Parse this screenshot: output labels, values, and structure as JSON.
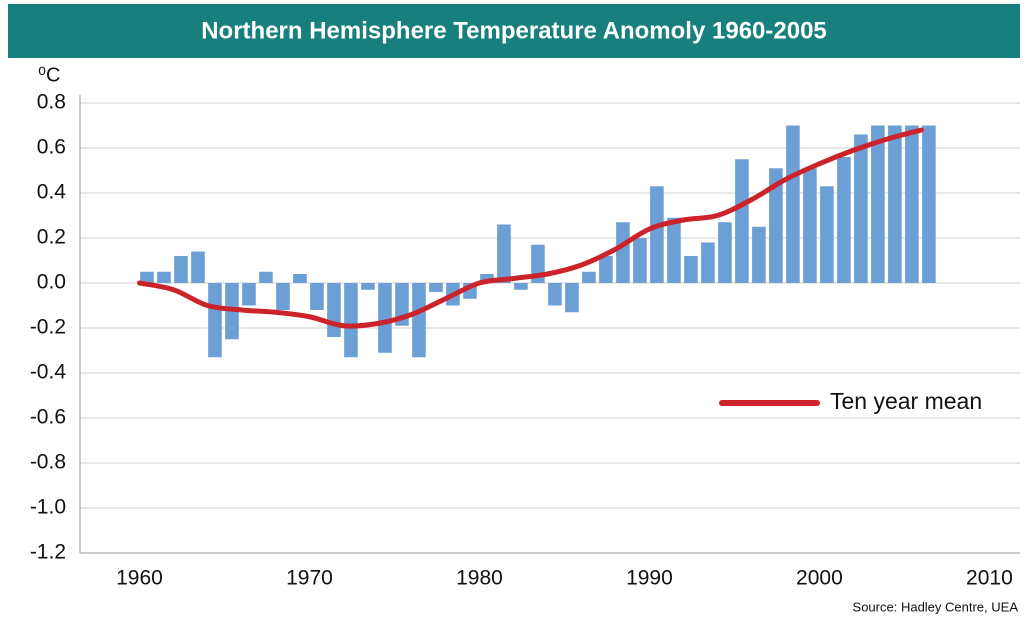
{
  "chart_data": {
    "type": "bar",
    "title": "Northern Hemisphere Temperature Anomoly 1960-2005",
    "y_label": "⁰C",
    "source": "Source: Hadley Centre, UEA",
    "xlim": [
      1956.5,
      2011.8
    ],
    "xticks": [
      1960,
      1970,
      1980,
      1990,
      2000,
      2010
    ],
    "ylim": [
      -1.2,
      0.8
    ],
    "yticks": [
      0.8,
      0.6,
      0.4,
      0.2,
      {
        "value": 0,
        "label": "0.0"
      },
      -0.2,
      -0.4,
      -0.6,
      -0.8,
      {
        "value": -1,
        "label": "-1.0"
      },
      -1.2
    ],
    "grid": true,
    "legend": "right",
    "series": [
      {
        "type": "bar",
        "color": "#6b9fd6",
        "x": [
          1960,
          1961,
          1962,
          1963,
          1964,
          1965,
          1966,
          1967,
          1968,
          1969,
          1970,
          1971,
          1972,
          1973,
          1974,
          1975,
          1976,
          1977,
          1978,
          1979,
          1980,
          1981,
          1982,
          1983,
          1984,
          1985,
          1986,
          1987,
          1988,
          1989,
          1990,
          1991,
          1992,
          1993,
          1994,
          1995,
          1996,
          1997,
          1998,
          1999,
          2000,
          2001,
          2002,
          2003,
          2004,
          2005,
          2006
        ],
        "values": [
          0.05,
          0.05,
          0.12,
          0.14,
          -0.33,
          -0.25,
          -0.1,
          0.05,
          -0.12,
          0.04,
          -0.12,
          -0.24,
          -0.33,
          -0.03,
          -0.31,
          -0.19,
          -0.33,
          -0.04,
          -0.1,
          -0.07,
          0.04,
          0.26,
          -0.03,
          0.17,
          -0.1,
          -0.13,
          0.05,
          0.12,
          0.27,
          0.2,
          0.43,
          0.29,
          0.12,
          0.18,
          0.27,
          0.55,
          0.25,
          0.51,
          0.7,
          0.51,
          0.43,
          0.56,
          0.66,
          0.7,
          0.7,
          0.7,
          0.7
        ]
      },
      {
        "type": "line",
        "name": "Ten year mean",
        "color": "#cc2229",
        "x": [
          1960,
          1962,
          1964,
          1966,
          1968,
          1970,
          1972,
          1974,
          1976,
          1978,
          1980,
          1982,
          1984,
          1986,
          1988,
          1990,
          1992,
          1994,
          1996,
          1998,
          2000,
          2002,
          2004,
          2006
        ],
        "values": [
          0,
          -0.03,
          -0.1,
          -0.12,
          -0.13,
          -0.15,
          -0.19,
          -0.18,
          -0.14,
          -0.07,
          0,
          0.02,
          0.04,
          0.08,
          0.15,
          0.24,
          0.28,
          0.3,
          0.37,
          0.46,
          0.53,
          0.59,
          0.64,
          0.68
        ]
      }
    ]
  }
}
